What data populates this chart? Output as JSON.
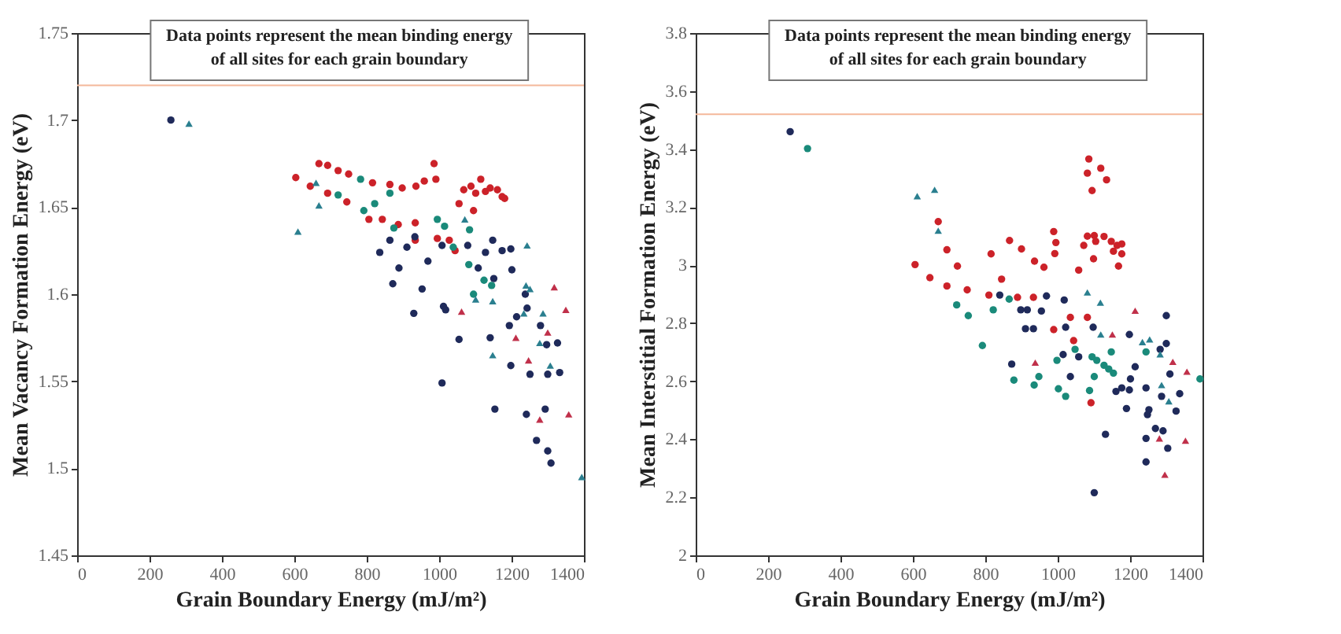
{
  "chart_data": [
    {
      "type": "scatter",
      "xlabel": "Grain Boundary Energy (mJ/m²)",
      "ylabel": "Mean Vacancy Formation Energy (eV)",
      "xlim": [
        0,
        1400
      ],
      "xticks": [
        0,
        200,
        400,
        600,
        800,
        1000,
        1200,
        1400
      ],
      "ylim": [
        1.45,
        1.75
      ],
      "yticks": [
        1.45,
        1.5,
        1.55,
        1.6,
        1.65,
        1.7,
        1.75
      ],
      "grid": false,
      "legend": false,
      "annotations": [
        "Data points represent the mean binding energy\nof all sites for each grain boundary"
      ],
      "ref_lines": [
        {
          "axis": "y",
          "value": 1.72,
          "color": "#f4b89a"
        }
      ],
      "series": [
        {
          "color": "#cc2229",
          "marker": "circle",
          "x": [
            604,
            644,
            668,
            692,
            721,
            750,
            816,
            864,
            898,
            936,
            959,
            986,
            991,
            1055,
            1068,
            1088,
            1101,
            1115,
            1128,
            1141,
            1161,
            1174,
            1181,
            692,
            745,
            806,
            843,
            887,
            934,
            934,
            995,
            1028,
            1044,
            1095
          ],
          "values": [
            1.667,
            1.662,
            1.675,
            1.674,
            1.671,
            1.669,
            1.664,
            1.663,
            1.661,
            1.662,
            1.665,
            1.675,
            1.666,
            1.652,
            1.66,
            1.662,
            1.658,
            1.666,
            1.659,
            1.661,
            1.66,
            1.656,
            1.655,
            1.658,
            1.653,
            1.643,
            1.643,
            1.64,
            1.641,
            1.631,
            1.632,
            1.631,
            1.625,
            1.648
          ]
        },
        {
          "color": "#1f2a5a",
          "marker": "circle",
          "x": [
            259,
            872,
            953,
            930,
            1012,
            1018,
            1055,
            1141,
            1008,
            1154,
            1194,
            1198,
            1214,
            1241,
            1243,
            1251,
            1269,
            1280,
            1293,
            1297,
            1300,
            1300,
            1309,
            1327,
            1333,
            1238,
            836,
            864,
            889,
            911,
            933,
            969,
            1008,
            1079,
            1108,
            1128,
            1174,
            1198,
            1201,
            1148,
            1151
          ],
          "values": [
            1.7,
            1.606,
            1.603,
            1.589,
            1.593,
            1.591,
            1.574,
            1.575,
            1.549,
            1.534,
            1.582,
            1.559,
            1.587,
            1.531,
            1.592,
            1.554,
            1.516,
            1.582,
            1.534,
            1.571,
            1.554,
            1.51,
            1.503,
            1.572,
            1.555,
            1.6,
            1.624,
            1.631,
            1.615,
            1.627,
            1.633,
            1.619,
            1.628,
            1.628,
            1.615,
            1.624,
            1.625,
            1.626,
            1.614,
            1.631,
            1.609
          ]
        },
        {
          "color": "#1a8a7a",
          "marker": "circle",
          "x": [
            721,
            783,
            792,
            822,
            864,
            875,
            995,
            1015,
            1039,
            1082,
            1084,
            1095,
            1145,
            1124
          ],
          "values": [
            1.657,
            1.666,
            1.648,
            1.652,
            1.658,
            1.638,
            1.643,
            1.639,
            1.627,
            1.617,
            1.637,
            1.6,
            1.605,
            1.608
          ]
        },
        {
          "color": "#2a7f8f",
          "marker": "triangle",
          "x": [
            309,
            610,
            668,
            660,
            1071,
            1243,
            1240,
            1148,
            1234,
            1278,
            1307,
            1394,
            1101,
            1148,
            1251,
            1287
          ],
          "values": [
            1.698,
            1.636,
            1.651,
            1.664,
            1.643,
            1.628,
            1.605,
            1.565,
            1.589,
            1.572,
            1.559,
            1.495,
            1.597,
            1.596,
            1.603,
            1.589
          ]
        },
        {
          "color": "#c0304a",
          "marker": "triangle",
          "x": [
            1062,
            1212,
            1318,
            1350,
            1300,
            1278,
            1358,
            1247
          ],
          "values": [
            1.59,
            1.575,
            1.604,
            1.591,
            1.578,
            1.528,
            1.531,
            1.562
          ]
        }
      ]
    },
    {
      "type": "scatter",
      "xlabel": "Grain Boundary Energy (mJ/m²)",
      "ylabel": "Mean Interstitial Formation Energy (eV)",
      "xlim": [
        0,
        1400
      ],
      "xticks": [
        0,
        200,
        400,
        600,
        800,
        1000,
        1200,
        1400
      ],
      "ylim": [
        2,
        3.8
      ],
      "yticks": [
        2,
        2.2,
        2.4,
        2.6,
        2.8,
        3,
        3.2,
        3.4,
        3.6,
        3.8
      ],
      "grid": false,
      "legend": false,
      "annotations": [
        "Data points represent the mean binding energy\nof all sites for each grain boundary"
      ],
      "ref_lines": [
        {
          "axis": "y",
          "value": 3.52,
          "color": "#f4b89a"
        }
      ],
      "series": [
        {
          "color": "#cc2229",
          "marker": "circle",
          "x": [
            606,
            647,
            670,
            694,
            723,
            750,
            816,
            867,
            900,
            936,
            962,
            989,
            992,
            995,
            1058,
            1072,
            1082,
            1086,
            1082,
            1095,
            1099,
            1101,
            1105,
            1119,
            1135,
            1128,
            1148,
            1154,
            1168,
            1177,
            1177,
            1164,
            694,
            810,
            845,
            889,
            933,
            989,
            1035,
            1044,
            1082,
            1092
          ],
          "values": [
            3.002,
            2.957,
            3.15,
            3.053,
            2.997,
            2.915,
            3.039,
            3.085,
            3.056,
            3.014,
            2.993,
            3.116,
            3.04,
            3.078,
            2.983,
            3.068,
            3.1,
            3.366,
            3.317,
            3.257,
            3.022,
            3.102,
            3.082,
            3.334,
            3.294,
            3.099,
            3.082,
            3.048,
            2.997,
            3.039,
            3.073,
            3.068,
            2.928,
            2.897,
            2.952,
            2.889,
            2.889,
            2.778,
            2.82,
            2.74,
            2.82,
            2.526
          ]
        },
        {
          "color": "#1f2a5a",
          "marker": "circle",
          "x": [
            261,
            840,
            873,
            898,
            916,
            911,
            933,
            955,
            969,
            1018,
            1022,
            1015,
            1035,
            1058,
            1098,
            1101,
            1132,
            1161,
            1177,
            1190,
            1198,
            1201,
            1198,
            1214,
            1244,
            1244,
            1248,
            1252,
            1244,
            1270,
            1291,
            1300,
            1304,
            1300,
            1310,
            1327,
            1337,
            1283,
            1287
          ],
          "values": [
            3.46,
            2.897,
            2.659,
            2.846,
            2.846,
            2.781,
            2.781,
            2.842,
            2.894,
            2.88,
            2.786,
            2.692,
            2.616,
            2.684,
            2.786,
            2.216,
            2.417,
            2.565,
            2.577,
            2.506,
            2.761,
            2.608,
            2.57,
            2.65,
            2.403,
            2.322,
            2.485,
            2.502,
            2.577,
            2.437,
            2.429,
            2.826,
            2.369,
            2.73,
            2.625,
            2.497,
            2.557,
            2.71,
            2.548
          ]
        },
        {
          "color": "#1a8a7a",
          "marker": "circle",
          "x": [
            309,
            721,
            753,
            792,
            822,
            866,
            879,
            935,
            948,
            998,
            1002,
            1022,
            1048,
            1088,
            1095,
            1108,
            1101,
            1128,
            1148,
            1154,
            1141,
            1244,
            1393
          ],
          "values": [
            3.402,
            2.863,
            2.826,
            2.723,
            2.846,
            2.883,
            2.604,
            2.587,
            2.616,
            2.672,
            2.574,
            2.548,
            2.71,
            2.568,
            2.684,
            2.672,
            2.616,
            2.655,
            2.701,
            2.628,
            2.642,
            2.701,
            2.608
          ]
        },
        {
          "color": "#2a7f8f",
          "marker": "triangle",
          "x": [
            612,
            660,
            670,
            1082,
            1118,
            1119,
            1234,
            1254,
            1283,
            1287,
            1307
          ],
          "values": [
            3.238,
            3.26,
            3.119,
            2.906,
            2.871,
            2.761,
            2.735,
            2.744,
            2.693,
            2.587,
            2.531
          ]
        },
        {
          "color": "#c0304a",
          "marker": "triangle",
          "x": [
            938,
            1214,
            1151,
            1281,
            1318,
            1353,
            1357,
            1296
          ],
          "values": [
            2.664,
            2.843,
            2.761,
            2.403,
            2.667,
            2.395,
            2.633,
            2.278
          ]
        }
      ]
    }
  ]
}
